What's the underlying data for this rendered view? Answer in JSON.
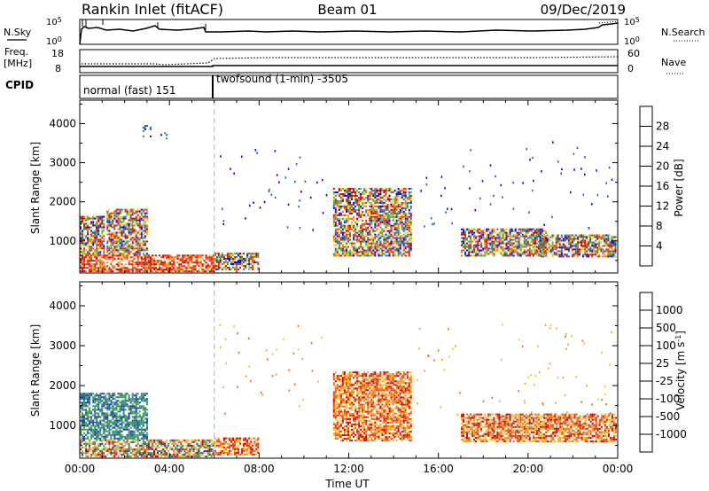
{
  "header": {
    "station": "Rankin Inlet (fitACF)",
    "beam": "Beam 01",
    "date": "09/Dec/2019"
  },
  "summary": {
    "nsky_label": "N.Sky",
    "nsearch_label": "N.Search",
    "freq_label_1": "Freq.",
    "freq_label_2": "[MHz]",
    "nave_label": "Nave",
    "cpid_label": "CPID",
    "nsky_ticks": [
      "10^5",
      "10^0"
    ],
    "nsearch_ticks": [
      "10^5",
      "10^0"
    ],
    "freq_ticks": [
      "18",
      "8"
    ],
    "nave_ticks": [
      "60",
      "0"
    ],
    "cpid_segments": [
      {
        "label": "normal (fast) 151",
        "start_h": 0,
        "end_h": 6
      },
      {
        "label": "twofsound (1-min) -3505",
        "start_h": 6,
        "end_h": 24
      }
    ]
  },
  "colors": {
    "power": [
      "#0000ff",
      "#2a5fb8",
      "#2e9a6a",
      "#55c23a",
      "#e9e32a",
      "#f5a81c",
      "#f06a12",
      "#ee2a0b",
      "#d60000"
    ],
    "velocity": [
      "#2040a8",
      "#2f8a78",
      "#3aa34a",
      "#8bd34d",
      "#b8b8b8",
      "#f2c12e",
      "#f5a31a",
      "#f0701a",
      "#e83a10",
      "#d80000"
    ]
  },
  "chart_data": [
    {
      "type": "heatmap",
      "name": "power",
      "xlabel": "",
      "ylabel": "Slant Range [km]",
      "xlim": [
        0,
        24
      ],
      "ylim": [
        180,
        4600
      ],
      "x_tick_labels": [
        "00:00",
        "04:00",
        "08:00",
        "12:00",
        "16:00",
        "20:00",
        "00:00"
      ],
      "y_ticks": [
        1000,
        2000,
        3000,
        4000
      ],
      "colorbar": {
        "label": "Power [dB]",
        "range": [
          0,
          32
        ],
        "ticks": [
          4,
          8,
          12,
          16,
          20,
          24,
          28
        ]
      },
      "echo_regions": [
        {
          "t0": 0.0,
          "t1": 6.0,
          "r0": 200,
          "r1": 620,
          "level": "high"
        },
        {
          "t0": 0.0,
          "t1": 1.1,
          "r0": 650,
          "r1": 1600,
          "level": "mid"
        },
        {
          "t0": 1.2,
          "t1": 3.0,
          "r0": 650,
          "r1": 1800,
          "level": "mid"
        },
        {
          "t0": 2.8,
          "t1": 3.2,
          "r0": 3650,
          "r1": 3950,
          "level": "low"
        },
        {
          "t0": 3.6,
          "t1": 3.9,
          "r0": 3600,
          "r1": 3800,
          "level": "low"
        },
        {
          "t0": 6.0,
          "t1": 8.0,
          "r0": 250,
          "r1": 700,
          "level": "mid"
        },
        {
          "t0": 11.3,
          "t1": 14.8,
          "r0": 600,
          "r1": 2350,
          "level": "mid"
        },
        {
          "t0": 17.0,
          "t1": 20.8,
          "r0": 600,
          "r1": 1300,
          "level": "mid"
        },
        {
          "t0": 20.5,
          "t1": 23.9,
          "r0": 580,
          "r1": 1150,
          "level": "mid"
        }
      ]
    },
    {
      "type": "heatmap",
      "name": "velocity",
      "xlabel": "Time UT",
      "ylabel": "Slant Range [km]",
      "xlim": [
        0,
        24
      ],
      "ylim": [
        180,
        4600
      ],
      "x_tick_labels": [
        "00:00",
        "04:00",
        "08:00",
        "12:00",
        "16:00",
        "20:00",
        "00:00"
      ],
      "y_ticks": [
        1000,
        2000,
        3000,
        4000
      ],
      "colorbar": {
        "label": "Velocity [m s^-1]",
        "ticks": [
          "1000",
          "500",
          "100",
          "25",
          "-25",
          "-100",
          "-500",
          "-1000"
        ]
      },
      "echo_regions": [
        {
          "t0": 0.0,
          "t1": 6.0,
          "r0": 200,
          "r1": 620,
          "level": "mixed"
        },
        {
          "t0": 0.0,
          "t1": 3.0,
          "r0": 650,
          "r1": 1800,
          "level": "toward"
        },
        {
          "t0": 6.0,
          "t1": 8.0,
          "r0": 250,
          "r1": 700,
          "level": "away"
        },
        {
          "t0": 11.3,
          "t1": 14.8,
          "r0": 600,
          "r1": 2350,
          "level": "away"
        },
        {
          "t0": 17.0,
          "t1": 23.9,
          "r0": 580,
          "r1": 1300,
          "level": "away"
        }
      ]
    }
  ]
}
